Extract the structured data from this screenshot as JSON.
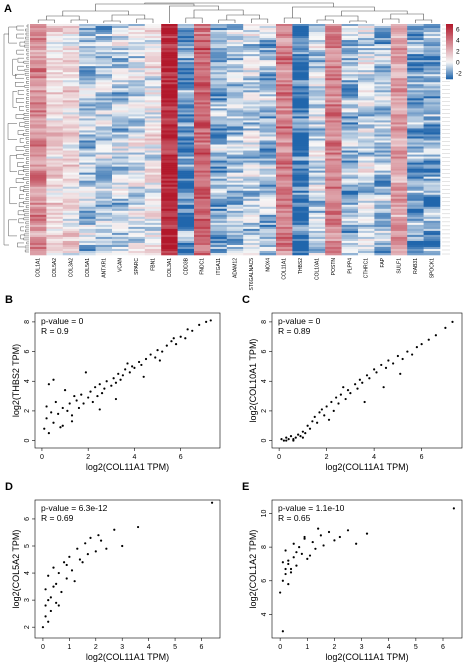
{
  "heatmap": {
    "panel_label": "A",
    "genes": [
      "COL1A1",
      "COL5A2",
      "COL3A2",
      "COL5A1",
      "ANTXR1",
      "VCAN",
      "SPARC",
      "FBN1",
      "COL3A1",
      "CDD3B",
      "FNDC1",
      "ITGA11",
      "ADAM12",
      "ST6GALNAC5",
      "NOX4",
      "COL11A1",
      "THBS2",
      "COL10A1",
      "POSTN",
      "PLPP4",
      "CTHRC1",
      "FAP",
      "SULF1",
      "RAB31",
      "SPOCK1"
    ],
    "colorbar_ticks": [
      "6",
      "4",
      "2",
      "0",
      "-2"
    ],
    "colors": {
      "high": "#b2182b",
      "mid": "#f7f7f7",
      "low": "#2166ac"
    }
  },
  "panels": [
    {
      "label": "B",
      "annotation_p": "p-value = 0",
      "annotation_r": "R = 0.9",
      "xlabel": "log2(COL11A1 TPM)",
      "ylabel": "log2(THBS2 TPM)",
      "xticks": [
        "0",
        "2",
        "4",
        "6"
      ],
      "yticks": [
        "0",
        "2",
        "4",
        "6",
        "8"
      ]
    },
    {
      "label": "C",
      "annotation_p": "p-value = 0",
      "annotation_r": "R = 0.89",
      "xlabel": "log2(COL11A1 TPM)",
      "ylabel": "log2(COL10A1 TPM)",
      "xticks": [
        "0",
        "2",
        "4",
        "6"
      ],
      "yticks": [
        "0",
        "2",
        "4",
        "6",
        "8"
      ]
    },
    {
      "label": "D",
      "annotation_p": "p-value = 6.3e-12",
      "annotation_r": "R = 0.69",
      "xlabel": "log2(COL11A1 TPM)",
      "ylabel": "log2(COL5A2 TPM)",
      "xticks": [
        "0",
        "1",
        "2",
        "3",
        "4",
        "5",
        "6"
      ],
      "yticks": [
        "2",
        "3",
        "4",
        "5",
        "6"
      ]
    },
    {
      "label": "E",
      "annotation_p": "p-value = 1.1e-10",
      "annotation_r": "R = 0.65",
      "xlabel": "log2(COL11A1 TPM)",
      "ylabel": "log2(COL1A2 TPM)",
      "xticks": [
        "0",
        "1",
        "2",
        "3",
        "4",
        "5",
        "6"
      ],
      "yticks": [
        "4",
        "6",
        "8",
        "10"
      ]
    }
  ],
  "chart_data": [
    {
      "type": "heatmap",
      "categories": [
        "COL1A1",
        "COL5A2",
        "COL3A2",
        "COL5A1",
        "ANTXR1",
        "VCAN",
        "SPARC",
        "FBN1",
        "COL3A1",
        "CDD3B",
        "FNDC1",
        "ITGA11",
        "ADAM12",
        "ST6GALNAC5",
        "NOX4",
        "COL11A1",
        "THBS2",
        "COL10A1",
        "POSTN",
        "PLPP4",
        "CTHRC1",
        "FAP",
        "SULF1",
        "RAB31",
        "SPOCK1"
      ],
      "column_mean": [
        3.3,
        1.0,
        0.9,
        -0.8,
        -0.8,
        -0.7,
        -0.3,
        0.3,
        6.6,
        -2.2,
        4.7,
        -1.4,
        -1.0,
        -0.6,
        -1.1,
        3.8,
        -2.8,
        -0.7,
        3.6,
        -1.3,
        -0.4,
        -1.1,
        2.6,
        -1.7,
        -1.6
      ],
      "value_range": [
        -3,
        7
      ]
    },
    {
      "type": "scatter",
      "xlabel": "log2(COL11A1 TPM)",
      "ylabel": "log2(THBS2 TPM)",
      "xlim": [
        -0.3,
        7.7
      ],
      "ylim": [
        -0.5,
        8.6
      ],
      "annotation": {
        "p_value": "0",
        "R": 0.9
      },
      "x": [
        0.1,
        0.2,
        0.2,
        0.3,
        0.4,
        0.5,
        0.6,
        0.7,
        0.8,
        0.9,
        1.0,
        1.1,
        1.2,
        1.3,
        1.4,
        1.5,
        1.6,
        1.7,
        1.8,
        2.0,
        2.1,
        2.2,
        2.3,
        2.4,
        2.5,
        2.6,
        2.7,
        2.8,
        3.0,
        3.1,
        3.2,
        3.3,
        3.4,
        3.5,
        3.6,
        3.8,
        3.9,
        4.0,
        4.2,
        4.3,
        4.5,
        4.7,
        4.9,
        5.0,
        5.2,
        5.4,
        5.6,
        5.8,
        6.0,
        6.2,
        6.5,
        6.8,
        7.1,
        7.3,
        0.3,
        0.5,
        0.9,
        1.3,
        1.9,
        2.5,
        3.2,
        3.7,
        4.4,
        5.1,
        5.7,
        6.3
      ],
      "y": [
        0.8,
        1.5,
        2.3,
        0.5,
        1.9,
        1.2,
        2.6,
        1.8,
        0.9,
        2.2,
        3.4,
        2.0,
        2.5,
        1.7,
        3.0,
        2.7,
        2.2,
        3.1,
        2.5,
        2.9,
        3.3,
        2.6,
        3.6,
        3.0,
        3.8,
        3.2,
        3.5,
        4.0,
        3.7,
        4.2,
        3.9,
        4.5,
        4.1,
        4.4,
        4.8,
        4.6,
        5.0,
        4.9,
        5.3,
        5.1,
        5.5,
        5.8,
        5.6,
        6.1,
        6.0,
        6.4,
        6.7,
        6.5,
        7.0,
        6.9,
        7.4,
        7.8,
        8.0,
        8.1,
        3.8,
        4.1,
        1.0,
        1.3,
        4.6,
        2.1,
        2.8,
        5.2,
        4.3,
        5.4,
        6.9,
        7.5
      ]
    },
    {
      "type": "scatter",
      "xlabel": "log2(COL11A1 TPM)",
      "ylabel": "log2(COL10A1 TPM)",
      "xlim": [
        -0.3,
        7.7
      ],
      "ylim": [
        -0.5,
        8.6
      ],
      "annotation": {
        "p_value": "0",
        "R": 0.89
      },
      "x": [
        0.1,
        0.2,
        0.3,
        0.4,
        0.5,
        0.6,
        0.7,
        0.8,
        0.9,
        1.0,
        1.1,
        1.2,
        1.3,
        1.4,
        1.5,
        1.6,
        1.7,
        1.8,
        1.9,
        2.0,
        2.2,
        2.3,
        2.4,
        2.5,
        2.6,
        2.8,
        2.9,
        3.0,
        3.2,
        3.3,
        3.4,
        3.5,
        3.7,
        3.8,
        4.0,
        4.1,
        4.3,
        4.5,
        4.6,
        4.8,
        5.0,
        5.2,
        5.4,
        5.6,
        5.8,
        6.0,
        6.3,
        6.6,
        7.0,
        7.3,
        0.3,
        0.6,
        1.0,
        2.1,
        2.7,
        3.6,
        4.4,
        5.1
      ],
      "y": [
        0.1,
        0.0,
        0.2,
        0.1,
        0.3,
        0.0,
        0.2,
        0.4,
        0.3,
        0.6,
        0.5,
        1.0,
        0.8,
        1.3,
        1.6,
        1.2,
        1.9,
        2.1,
        1.7,
        2.3,
        2.6,
        2.0,
        2.9,
        2.5,
        3.1,
        2.8,
        3.4,
        3.2,
        3.8,
        3.5,
        4.1,
        3.9,
        4.4,
        4.2,
        4.8,
        4.6,
        5.1,
        4.9,
        5.4,
        5.2,
        5.7,
        5.5,
        6.0,
        5.8,
        6.3,
        6.5,
        6.8,
        7.1,
        7.6,
        8.0,
        0.0,
        0.1,
        0.2,
        1.4,
        3.6,
        2.6,
        3.6,
        4.5
      ]
    },
    {
      "type": "scatter",
      "xlabel": "log2(COL11A1 TPM)",
      "ylabel": "log2(COL5A2 TPM)",
      "xlim": [
        -0.3,
        6.7
      ],
      "ylim": [
        1.6,
        6.7
      ],
      "annotation": {
        "p_value": "6.3e-12",
        "R": 0.69
      },
      "x": [
        0.0,
        0.1,
        0.1,
        0.2,
        0.2,
        0.3,
        0.3,
        0.4,
        0.5,
        0.5,
        0.6,
        0.7,
        0.8,
        0.9,
        1.0,
        1.1,
        1.2,
        1.3,
        1.5,
        1.6,
        1.7,
        1.8,
        2.0,
        2.2,
        2.4,
        2.7,
        3.0,
        3.6,
        6.4,
        0.1,
        0.2,
        0.4,
        0.6,
        0.9,
        1.4,
        2.1
      ],
      "y": [
        2.0,
        2.8,
        3.4,
        2.2,
        3.9,
        2.6,
        3.1,
        4.2,
        2.9,
        3.6,
        4.0,
        3.3,
        4.4,
        3.8,
        4.6,
        4.1,
        3.7,
        4.9,
        4.4,
        5.1,
        4.7,
        5.3,
        4.8,
        5.2,
        4.9,
        5.6,
        5.0,
        5.7,
        6.6,
        2.4,
        3.0,
        3.5,
        2.8,
        4.3,
        4.5,
        5.4
      ]
    },
    {
      "type": "scatter",
      "xlabel": "log2(COL11A1 TPM)",
      "ylabel": "log2(COL1A2 TPM)",
      "xlim": [
        -0.3,
        6.7
      ],
      "ylim": [
        2.6,
        10.8
      ],
      "annotation": {
        "p_value": "1.1e-10",
        "R": 0.65
      },
      "x": [
        0.0,
        0.1,
        0.1,
        0.2,
        0.2,
        0.3,
        0.3,
        0.4,
        0.5,
        0.5,
        0.6,
        0.7,
        0.8,
        0.9,
        1.0,
        1.2,
        1.3,
        1.5,
        1.6,
        1.8,
        2.0,
        2.2,
        2.5,
        2.8,
        3.2,
        6.4,
        0.1,
        0.2,
        0.3,
        0.4,
        0.6,
        0.9,
        1.1,
        1.4
      ],
      "y": [
        5.3,
        6.0,
        7.1,
        6.4,
        7.8,
        5.8,
        7.0,
        6.7,
        8.2,
        7.4,
        6.9,
        8.0,
        7.6,
        8.5,
        7.3,
        8.3,
        7.9,
        8.7,
        8.1,
        8.9,
        8.4,
        8.6,
        9.0,
        8.2,
        8.8,
        10.3,
        3.0,
        6.7,
        7.2,
        6.5,
        7.7,
        8.6,
        7.5,
        9.1
      ]
    }
  ]
}
